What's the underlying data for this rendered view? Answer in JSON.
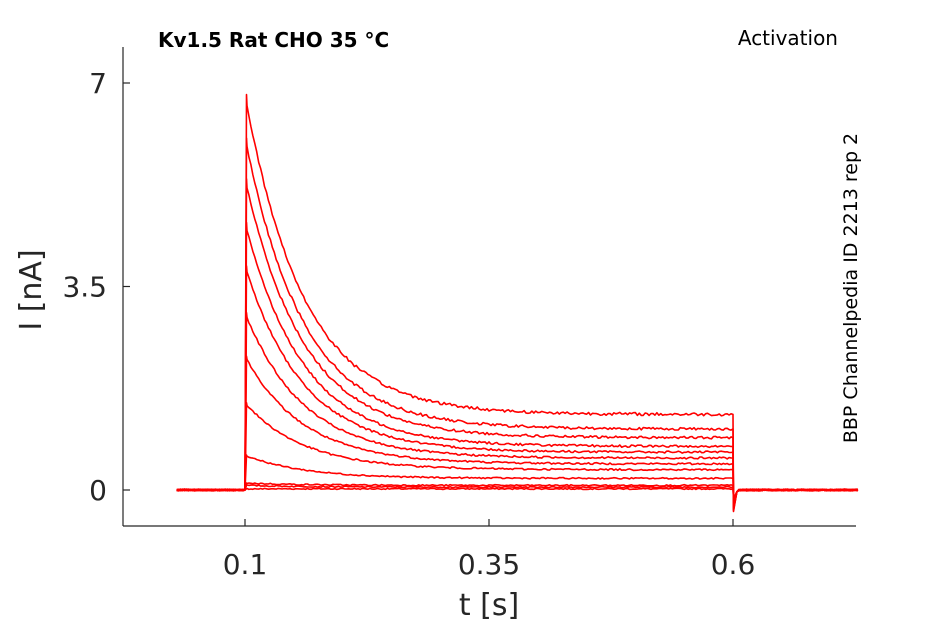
{
  "chart_data": {
    "type": "line",
    "title": "Kv1.5  Rat  CHO  35 °C",
    "protocol_label": "Activation",
    "source_label": "BBP Channelpedia ID 2213 rep 2",
    "xlabel": "t [s]",
    "ylabel": "I [nA]",
    "xlim": [
      0.0,
      0.75
    ],
    "ylim": [
      -0.6,
      7.6
    ],
    "xticks": [
      0.1,
      0.35,
      0.6
    ],
    "xtick_labels": [
      "0.1",
      "0.35",
      "0.6"
    ],
    "yticks": [
      0,
      3.5,
      7
    ],
    "ytick_labels": [
      "0",
      "3.5",
      "7"
    ],
    "grid": false,
    "legend": "none",
    "line_color": "#ff0000",
    "step_on": 0.1,
    "step_off": 0.6,
    "trace_start": 0.03,
    "trace_end": 0.73,
    "series": [
      {
        "peak": 0.02,
        "steady": 0.02
      },
      {
        "peak": 0.08,
        "steady": 0.05
      },
      {
        "peak": 0.12,
        "steady": 0.08
      },
      {
        "peak": 0.6,
        "steady": 0.2
      },
      {
        "peak": 1.5,
        "steady": 0.35
      },
      {
        "peak": 2.3,
        "steady": 0.45
      },
      {
        "peak": 3.05,
        "steady": 0.55
      },
      {
        "peak": 3.85,
        "steady": 0.65
      },
      {
        "peak": 4.6,
        "steady": 0.75
      },
      {
        "peak": 5.35,
        "steady": 0.9
      },
      {
        "peak": 6.05,
        "steady": 1.05
      },
      {
        "peak": 6.8,
        "steady": 1.3
      }
    ]
  }
}
